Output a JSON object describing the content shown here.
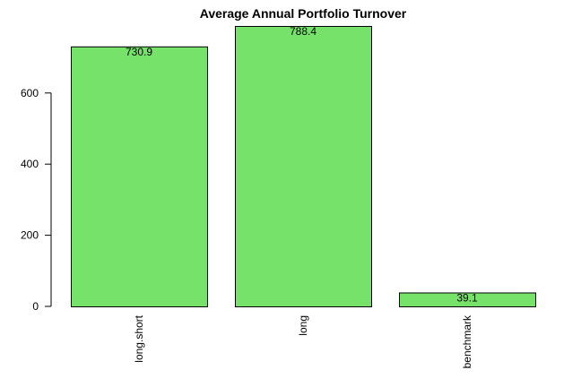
{
  "chart_data": {
    "type": "bar",
    "title": "Average Annual Portfolio Turnover",
    "xlabel": "",
    "ylabel": "",
    "categories": [
      "long.short",
      "long",
      "benchmark"
    ],
    "values": [
      730.9,
      788.4,
      39.1
    ],
    "data_labels": [
      "730.9",
      "788.4",
      "39.1"
    ],
    "yticks": [
      0,
      200,
      400,
      600
    ],
    "ylim": [
      0,
      788.4
    ],
    "bar_color": "#77e26a",
    "bar_edge_color": "#000000",
    "grid": false,
    "legend": "none"
  }
}
